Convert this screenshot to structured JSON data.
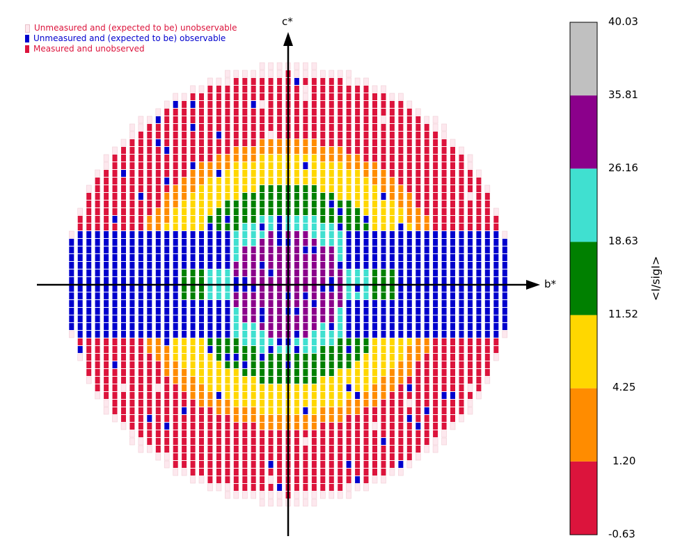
{
  "chart_data": {
    "type": "heatmap",
    "title": "",
    "axes": {
      "horizontal": "b*",
      "vertical": "c*"
    },
    "colorbar": {
      "title": "<I/sigI>",
      "ticks": [
        "40.03",
        "35.81",
        "26.16",
        "18.63",
        "11.52",
        "4.25",
        "1.20",
        "-0.63"
      ],
      "bins": [
        {
          "range": [
            35.81,
            40.03
          ],
          "color": "#c0c0c0"
        },
        {
          "range": [
            26.16,
            35.81
          ],
          "color": "#8b008b"
        },
        {
          "range": [
            18.63,
            26.16
          ],
          "color": "#40e0d0"
        },
        {
          "range": [
            11.52,
            18.63
          ],
          "color": "#008000"
        },
        {
          "range": [
            4.25,
            11.52
          ],
          "color": "#ffd700"
        },
        {
          "range": [
            1.2,
            4.25
          ],
          "color": "#ff8c00"
        },
        {
          "range": [
            -0.63,
            1.2
          ],
          "color": "#dc143c"
        }
      ]
    },
    "legend": [
      {
        "label": "Unmeasured and (expected to be) unobservable",
        "color": "#fde8ee",
        "text_color": "#dc143c"
      },
      {
        "label": "Unmeasured and (expected to be) observable",
        "color": "#0000cd",
        "text_color": "#0000cd"
      },
      {
        "label": "Measured and unobserved",
        "color": "#dc143c",
        "text_color": "#dc143c"
      }
    ],
    "legend_position": "top-left",
    "grid": false
  }
}
